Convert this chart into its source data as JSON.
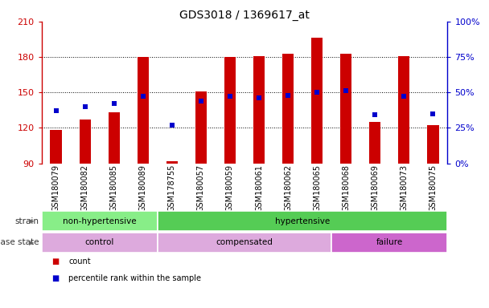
{
  "title": "GDS3018 / 1369617_at",
  "samples": [
    "GSM180079",
    "GSM180082",
    "GSM180085",
    "GSM180089",
    "GSM178755",
    "GSM180057",
    "GSM180059",
    "GSM180061",
    "GSM180062",
    "GSM180065",
    "GSM180068",
    "GSM180069",
    "GSM180073",
    "GSM180075"
  ],
  "count_values": [
    118,
    127,
    133,
    180,
    92,
    151,
    180,
    181,
    183,
    196,
    183,
    125,
    181,
    122
  ],
  "percentile_values": [
    37,
    40,
    42,
    47,
    27,
    44,
    47,
    46,
    48,
    50,
    51,
    34,
    47,
    35
  ],
  "ymin": 90,
  "ymax": 210,
  "yticks": [
    90,
    120,
    150,
    180,
    210
  ],
  "y2min": 0,
  "y2max": 100,
  "y2ticks": [
    0,
    25,
    50,
    75,
    100
  ],
  "bar_color": "#cc0000",
  "dot_color": "#0000cc",
  "strain_labels": [
    {
      "text": "non-hypertensive",
      "start": 0,
      "end": 4,
      "color": "#88ee88"
    },
    {
      "text": "hypertensive",
      "start": 4,
      "end": 14,
      "color": "#55cc55"
    }
  ],
  "disease_labels": [
    {
      "text": "control",
      "start": 0,
      "end": 4,
      "color": "#ddaadd"
    },
    {
      "text": "compensated",
      "start": 4,
      "end": 10,
      "color": "#ddaadd"
    },
    {
      "text": "failure",
      "start": 10,
      "end": 14,
      "color": "#cc66cc"
    }
  ],
  "strain_row_label": "strain",
  "disease_row_label": "disease state",
  "legend_count_label": "count",
  "legend_pct_label": "percentile rank within the sample",
  "axis_color_left": "#cc0000",
  "axis_color_right": "#0000cc",
  "title_fontsize": 10,
  "tick_fontsize": 7,
  "bar_width": 0.4
}
